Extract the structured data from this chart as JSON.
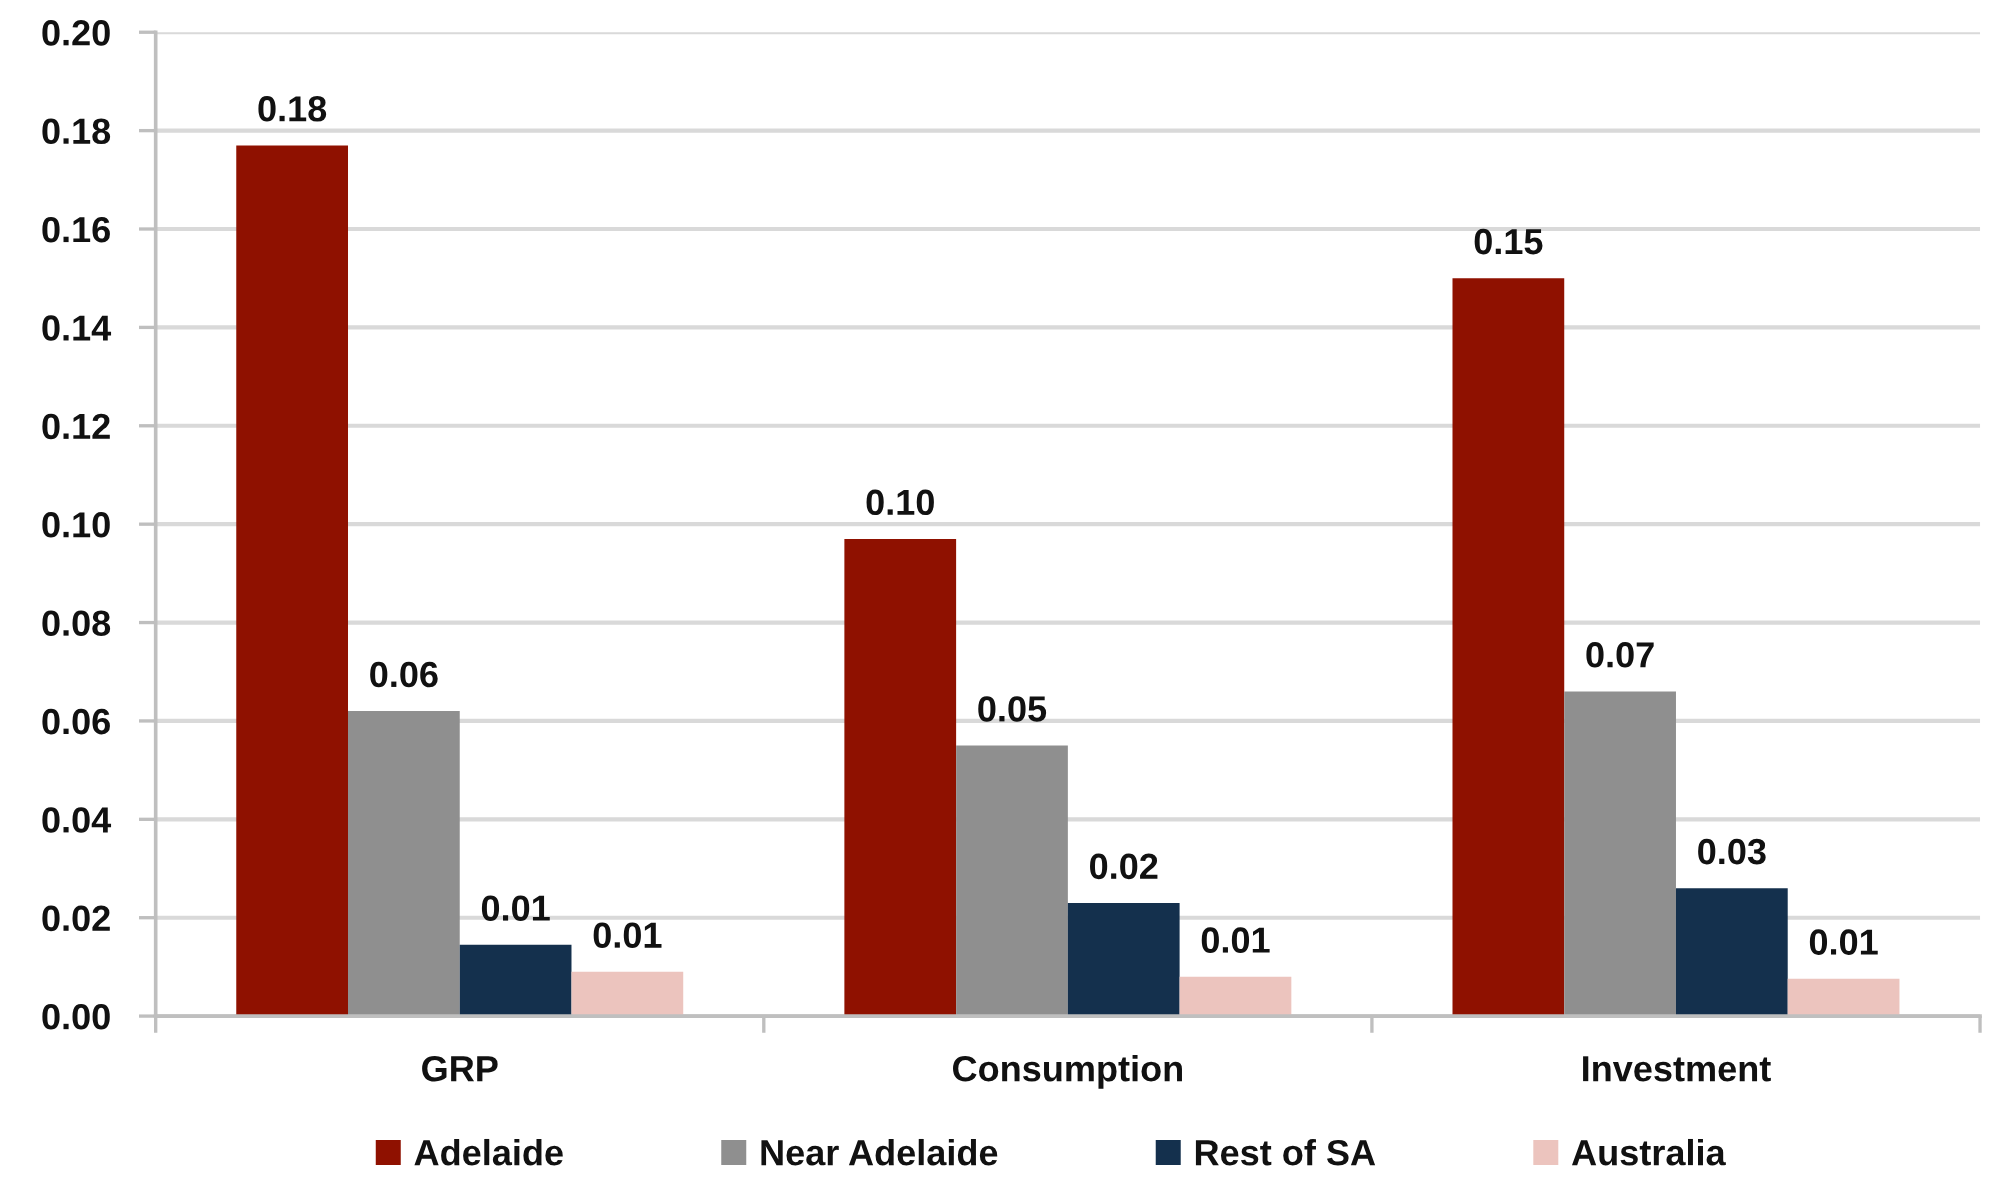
{
  "chart_data": {
    "type": "bar",
    "categories": [
      "GRP",
      "Consumption",
      "Investment"
    ],
    "series": [
      {
        "name": "Adelaide",
        "color": "#8f1100",
        "values": [
          0.177,
          0.097,
          0.15
        ],
        "value_labels": [
          "0.18",
          "0.10",
          "0.15"
        ]
      },
      {
        "name": "Near Adelaide",
        "color": "#8f8f8f",
        "values": [
          0.062,
          0.055,
          0.066
        ],
        "value_labels": [
          "0.06",
          "0.05",
          "0.07"
        ]
      },
      {
        "name": "Rest of SA",
        "color": "#14304d",
        "values": [
          0.0145,
          0.023,
          0.026
        ],
        "value_labels": [
          "0.01",
          "0.02",
          "0.03"
        ]
      },
      {
        "name": "Australia",
        "color": "#ecc4be",
        "values": [
          0.009,
          0.008,
          0.0076
        ],
        "value_labels": [
          "0.01",
          "0.01",
          "0.01"
        ]
      }
    ],
    "ylim": [
      0,
      0.2
    ],
    "yticks": [
      {
        "value": 0,
        "label": "0.00"
      },
      {
        "value": 0.02,
        "label": "0.02"
      },
      {
        "value": 0.04,
        "label": "0.04"
      },
      {
        "value": 0.06,
        "label": "0.06"
      },
      {
        "value": 0.08,
        "label": "0.08"
      },
      {
        "value": 0.1,
        "label": "0.10"
      },
      {
        "value": 0.12,
        "label": "0.12"
      },
      {
        "value": 0.14,
        "label": "0.14"
      },
      {
        "value": 0.16,
        "label": "0.16"
      },
      {
        "value": 0.18,
        "label": "0.18"
      },
      {
        "value": 0.2,
        "label": "0.20"
      }
    ],
    "grid": "y",
    "legend": "bottom"
  }
}
